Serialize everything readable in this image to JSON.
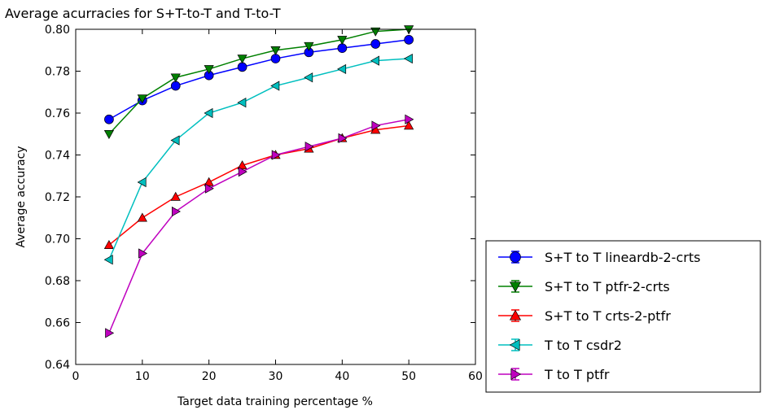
{
  "chart_data": {
    "type": "line",
    "title": "Average acurracies for S+T-to-T and T-to-T",
    "xlabel": "Target data training percentage %",
    "ylabel": "Average accuracy",
    "xlim": [
      0,
      60
    ],
    "ylim": [
      0.64,
      0.8
    ],
    "x_ticks": [
      "0",
      "10",
      "20",
      "30",
      "40",
      "50",
      "60"
    ],
    "y_ticks": [
      "0.64",
      "0.66",
      "0.68",
      "0.70",
      "0.72",
      "0.74",
      "0.76",
      "0.78",
      "0.80"
    ],
    "grid": false,
    "legend_position": "outside-lower-right",
    "x": [
      5,
      10,
      15,
      20,
      25,
      30,
      35,
      40,
      45,
      50
    ],
    "series": [
      {
        "name": "S+T to T lineardb-2-crts",
        "color": "#0000ff",
        "marker": "circle",
        "values": [
          0.757,
          0.766,
          0.773,
          0.778,
          0.782,
          0.786,
          0.789,
          0.791,
          0.793,
          0.795
        ]
      },
      {
        "name": "S+T to T ptfr-2-crts",
        "color": "#008000",
        "marker": "triangle-down",
        "values": [
          0.75,
          0.767,
          0.777,
          0.781,
          0.786,
          0.79,
          0.792,
          0.795,
          0.799,
          0.8
        ]
      },
      {
        "name": "S+T to T crts-2-ptfr",
        "color": "#ff0000",
        "marker": "triangle-up",
        "values": [
          0.697,
          0.71,
          0.72,
          0.727,
          0.735,
          0.74,
          0.743,
          0.748,
          0.752,
          0.754
        ]
      },
      {
        "name": "T to T csdr2",
        "color": "#00bfbf",
        "marker": "triangle-left",
        "values": [
          0.69,
          0.727,
          0.747,
          0.76,
          0.765,
          0.773,
          0.777,
          0.781,
          0.785,
          0.786
        ]
      },
      {
        "name": "T to T ptfr",
        "color": "#bf00bf",
        "marker": "triangle-right",
        "values": [
          0.655,
          0.693,
          0.713,
          0.724,
          0.732,
          0.74,
          0.744,
          0.748,
          0.754,
          0.757
        ]
      }
    ]
  }
}
